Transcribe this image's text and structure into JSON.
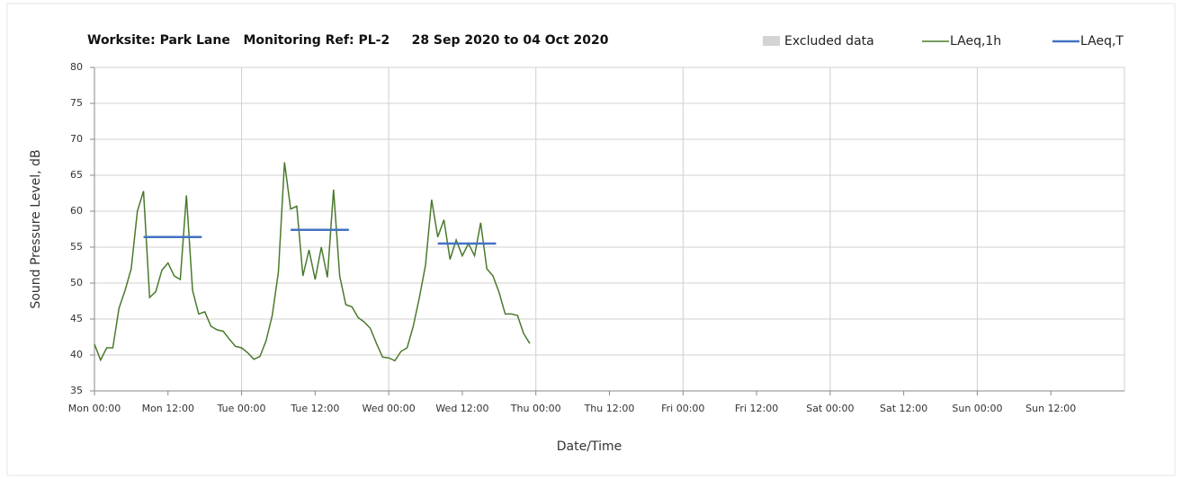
{
  "chart_data": {
    "type": "line",
    "title": "Worksite: Park Lane   Monitoring Ref: PL-2     28 Sep 2020 to 04 Oct 2020",
    "xlabel": "Date/Time",
    "ylabel": "Sound Pressure Level, dB",
    "xlim": [
      0,
      168
    ],
    "ylim": [
      35,
      80
    ],
    "yticks": [
      35,
      40,
      45,
      50,
      55,
      60,
      65,
      70,
      75,
      80
    ],
    "xticks": [
      {
        "value": 0,
        "label": "Mon 00:00"
      },
      {
        "value": 12,
        "label": "Mon 12:00"
      },
      {
        "value": 24,
        "label": "Tue 00:00"
      },
      {
        "value": 36,
        "label": "Tue 12:00"
      },
      {
        "value": 48,
        "label": "Wed 00:00"
      },
      {
        "value": 60,
        "label": "Wed 12:00"
      },
      {
        "value": 72,
        "label": "Thu 00:00"
      },
      {
        "value": 84,
        "label": "Thu 12:00"
      },
      {
        "value": 96,
        "label": "Fri 00:00"
      },
      {
        "value": 108,
        "label": "Fri 12:00"
      },
      {
        "value": 120,
        "label": "Sat 00:00"
      },
      {
        "value": 132,
        "label": "Sat 12:00"
      },
      {
        "value": 144,
        "label": "Sun 00:00"
      },
      {
        "value": 156,
        "label": "Sun 12:00"
      }
    ],
    "grid": true,
    "excluded_data": {
      "name": "Excluded data",
      "color": "#d4d4d4"
    },
    "x": [
      0,
      1,
      2,
      3,
      4,
      5,
      6,
      7,
      8,
      9,
      10,
      11,
      12,
      13,
      14,
      15,
      16,
      17,
      18,
      19,
      20,
      21,
      22,
      23,
      24,
      25,
      26,
      27,
      28,
      29,
      30,
      31,
      32,
      33,
      34,
      35,
      36,
      37,
      38,
      39,
      40,
      41,
      42,
      43,
      44,
      45,
      46,
      47,
      48,
      49,
      50,
      51,
      52,
      53,
      54,
      55,
      56,
      57,
      58,
      59,
      60,
      61,
      62,
      63,
      64,
      65,
      66,
      67,
      68,
      69,
      70,
      71
    ],
    "series": [
      {
        "name": "LAeq,1h",
        "color": "#4a7a2c",
        "values": [
          41.5,
          39.3,
          41,
          41,
          46.5,
          49,
          52,
          60,
          62.8,
          48,
          48.8,
          51.8,
          52.8,
          51,
          50.5,
          62.2,
          49,
          45.7,
          46,
          44,
          43.5,
          43.3,
          42.2,
          41.2,
          41,
          40.3,
          39.4,
          39.8,
          42,
          45.5,
          51.5,
          66.8,
          60.3,
          60.7,
          51,
          54.6,
          50.5,
          55,
          50.8,
          63,
          51,
          47,
          46.7,
          45.2,
          44.6,
          43.7,
          41.6,
          39.7,
          39.6,
          39.2,
          40.5,
          41,
          44,
          48,
          52.5,
          61.6,
          56.4,
          58.8,
          53.3,
          56,
          53.8,
          55.5,
          53.8,
          58.4,
          52,
          51,
          48.7,
          45.7,
          45.7,
          45.5,
          43,
          41.6
        ]
      },
      {
        "name": "LAeq,T",
        "color": "#4472c4",
        "x": [
          8,
          17.5,
          24,
          32,
          41.5,
          48,
          56,
          65.5
        ],
        "values": [
          56.4,
          56.4,
          null,
          57.4,
          57.4,
          null,
          55.5,
          55.5
        ]
      }
    ]
  }
}
